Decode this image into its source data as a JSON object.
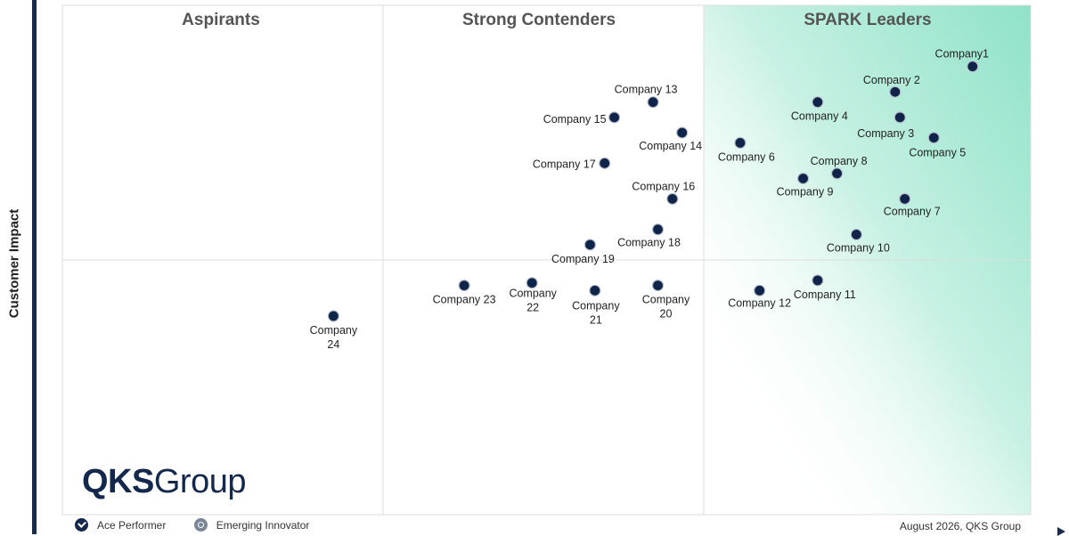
{
  "chart_data": {
    "type": "scatter",
    "ylabel": "Customer Impact",
    "quadrants": [
      "Aspirants",
      "Strong Contenders",
      "SPARK Leaders"
    ],
    "x_range": [
      0,
      100
    ],
    "y_range": [
      0,
      100
    ],
    "points": [
      {
        "label": "Company1",
        "x": 94,
        "y": 88
      },
      {
        "label": "Company 2",
        "x": 86,
        "y": 83
      },
      {
        "label": "Company 3",
        "x": 86.5,
        "y": 78
      },
      {
        "label": "Company 4",
        "x": 78,
        "y": 81
      },
      {
        "label": "Company 5",
        "x": 90,
        "y": 74
      },
      {
        "label": "Company 6",
        "x": 70,
        "y": 73
      },
      {
        "label": "Company 7",
        "x": 87,
        "y": 62
      },
      {
        "label": "Company 8",
        "x": 80,
        "y": 67
      },
      {
        "label": "Company 9",
        "x": 76.5,
        "y": 66
      },
      {
        "label": "Company 10",
        "x": 82,
        "y": 55
      },
      {
        "label": "Company 11",
        "x": 78,
        "y": 46
      },
      {
        "label": "Company 12",
        "x": 72,
        "y": 44
      },
      {
        "label": "Company 13",
        "x": 61,
        "y": 81
      },
      {
        "label": "Company 14",
        "x": 64,
        "y": 75
      },
      {
        "label": "Company 15",
        "x": 57,
        "y": 78
      },
      {
        "label": "Company 16",
        "x": 63,
        "y": 62
      },
      {
        "label": "Company 17",
        "x": 56,
        "y": 69
      },
      {
        "label": "Company 18",
        "x": 61.5,
        "y": 56
      },
      {
        "label": "Company 19",
        "x": 54.5,
        "y": 53
      },
      {
        "label": "Company 20",
        "x": 61.5,
        "y": 45
      },
      {
        "label": "Company 21",
        "x": 55,
        "y": 44
      },
      {
        "label": "Company 22",
        "x": 48.5,
        "y": 45.5
      },
      {
        "label": "Company 23",
        "x": 41.5,
        "y": 45
      },
      {
        "label": "Company 24",
        "x": 28,
        "y": 39
      }
    ]
  },
  "logo": {
    "part1": "QKS",
    "part2": "Group"
  },
  "legend": {
    "ace": "Ace Performer",
    "emerging": "Emerging Innovator"
  },
  "footer": {
    "date_source": "August 2026, QKS Group"
  },
  "colors": {
    "point": "#0f2448",
    "leaders_gradient": "#9fe6cf",
    "grid": "#dddddd",
    "logo": "#13284c"
  },
  "icons": {
    "ace": "check-badge-icon",
    "emerging": "lightbulb-badge-icon"
  }
}
